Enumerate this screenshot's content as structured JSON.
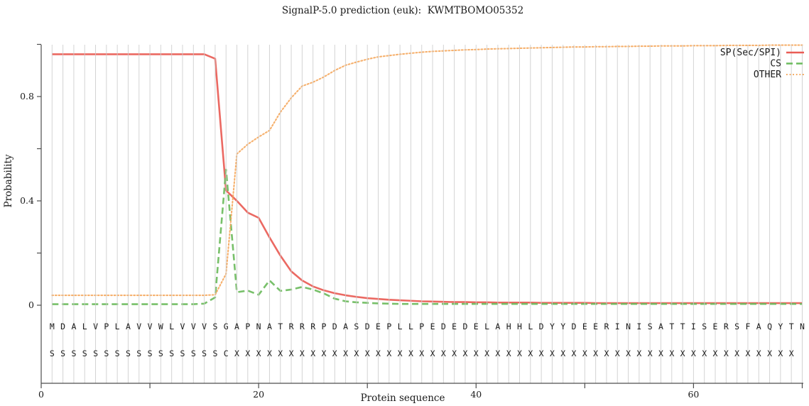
{
  "page_title": "SignalP-5.0 prediction (euk):  KWMTBOMO05352",
  "colors": {
    "sp": "#e95c55",
    "cs": "#6cbb5d",
    "other": "#f5a95f",
    "grid": "#cccccc",
    "axis": "#4d4d4d",
    "text": "#1a1a1a"
  },
  "chart_data": {
    "type": "line",
    "title": "SignalP-5.0 prediction (euk):  KWMTBOMO05352",
    "xlabel": "Protein sequence",
    "ylabel": "Probability",
    "xlim": [
      0,
      70.1
    ],
    "ylim": [
      0,
      1.0
    ],
    "grid": "vertical gridline at every residue position 1-70",
    "legend_position": "top-right inside plot",
    "x_ticks_labeled": [
      0,
      20,
      40,
      60
    ],
    "x_ticks_minor": [
      10,
      30,
      50,
      70
    ],
    "y_ticks_labeled": [
      0,
      0.4,
      0.8
    ],
    "y_ticks_minor": [
      0.2,
      0.6,
      1.0
    ],
    "x_start": 1,
    "x_end": 70,
    "series": [
      {
        "name": "SP(Sec/SPI)",
        "style": "solid",
        "color": "#e95c55",
        "values": [
          0.962,
          0.962,
          0.962,
          0.962,
          0.962,
          0.962,
          0.962,
          0.962,
          0.962,
          0.962,
          0.962,
          0.962,
          0.962,
          0.962,
          0.962,
          0.945,
          0.44,
          0.4,
          0.355,
          0.335,
          0.26,
          0.19,
          0.13,
          0.095,
          0.072,
          0.057,
          0.046,
          0.038,
          0.032,
          0.027,
          0.024,
          0.021,
          0.019,
          0.017,
          0.015,
          0.014,
          0.013,
          0.012,
          0.012,
          0.011,
          0.011,
          0.01,
          0.01,
          0.01,
          0.01,
          0.009,
          0.009,
          0.009,
          0.009,
          0.009,
          0.008,
          0.008,
          0.008,
          0.008,
          0.008,
          0.008,
          0.008,
          0.008,
          0.008,
          0.008,
          0.008,
          0.008,
          0.008,
          0.008,
          0.008,
          0.008,
          0.008,
          0.008,
          0.008,
          0.008
        ]
      },
      {
        "name": "CS",
        "style": "dashed",
        "color": "#6cbb5d",
        "values": [
          0.004,
          0.004,
          0.004,
          0.004,
          0.004,
          0.004,
          0.004,
          0.004,
          0.004,
          0.004,
          0.004,
          0.004,
          0.004,
          0.004,
          0.006,
          0.03,
          0.52,
          0.05,
          0.056,
          0.04,
          0.095,
          0.055,
          0.06,
          0.07,
          0.06,
          0.045,
          0.025,
          0.015,
          0.011,
          0.009,
          0.007,
          0.006,
          0.005,
          0.005,
          0.005,
          0.005,
          0.005,
          0.005,
          0.005,
          0.005,
          0.005,
          0.005,
          0.005,
          0.005,
          0.005,
          0.005,
          0.005,
          0.005,
          0.005,
          0.005,
          0.005,
          0.005,
          0.005,
          0.005,
          0.005,
          0.005,
          0.005,
          0.005,
          0.005,
          0.005,
          0.005,
          0.005,
          0.005,
          0.005,
          0.005,
          0.005,
          0.005,
          0.005,
          0.005,
          0.005
        ]
      },
      {
        "name": "OTHER",
        "style": "dotted",
        "color": "#f5a95f",
        "values": [
          0.038,
          0.038,
          0.038,
          0.038,
          0.038,
          0.038,
          0.038,
          0.038,
          0.038,
          0.038,
          0.038,
          0.038,
          0.038,
          0.038,
          0.038,
          0.04,
          0.12,
          0.58,
          0.617,
          0.645,
          0.67,
          0.74,
          0.795,
          0.84,
          0.855,
          0.875,
          0.9,
          0.92,
          0.932,
          0.943,
          0.952,
          0.957,
          0.962,
          0.966,
          0.97,
          0.973,
          0.975,
          0.977,
          0.979,
          0.98,
          0.982,
          0.983,
          0.984,
          0.985,
          0.986,
          0.987,
          0.988,
          0.989,
          0.99,
          0.99,
          0.991,
          0.991,
          0.992,
          0.992,
          0.993,
          0.993,
          0.994,
          0.994,
          0.994,
          0.995,
          0.995,
          0.995,
          0.996,
          0.996,
          0.996,
          0.996,
          0.997,
          0.997,
          0.997,
          0.997
        ]
      }
    ],
    "sequence_row": "MDALVPLAVVWLVVVSGAPNATRRRPDASDEPLLPEDEDELAHHLDYYDEERINISATTISERSFAQYTN",
    "marker_row": "SSSSSSSSSSSSSSSSCXXXXXXXXXXXXXXXXXXXXXXXXXXXXXXXXXXXXXXXXXXXXXXXXXXXX"
  }
}
